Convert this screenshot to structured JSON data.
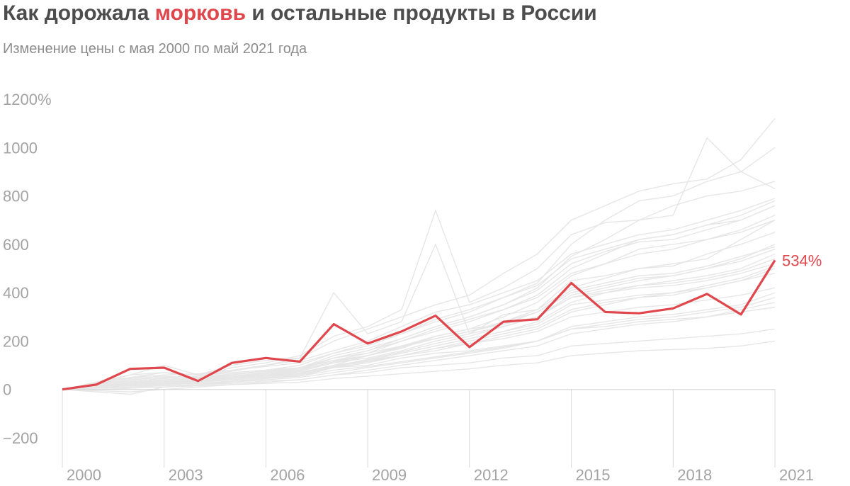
{
  "header": {
    "title_prefix": "Как дорожала ",
    "title_highlight": "морковь",
    "title_suffix": " и остальные продукты в России",
    "subtitle": "Изменение цены с мая 2000 по май 2021 года"
  },
  "colors": {
    "highlight": "#e0474c",
    "background_series": "#e6e6e6",
    "axis": "#d9d9d9",
    "tick_text": "#a3a3a3"
  },
  "chart_data": {
    "type": "line",
    "title": "Как дорожала морковь и остальные продукты в России",
    "subtitle": "Изменение цены с мая 2000 по май 2021 года",
    "xlabel": "",
    "ylabel": "",
    "xlim": [
      2000,
      2021
    ],
    "ylim": [
      -200,
      1200
    ],
    "y_ticks": [
      -200,
      0,
      200,
      400,
      600,
      800,
      1000,
      1200
    ],
    "y_tick_labels": [
      "−200",
      "0",
      "200",
      "400",
      "600",
      "800",
      "1000",
      "1200%"
    ],
    "x_ticks": [
      2000,
      2003,
      2006,
      2009,
      2012,
      2015,
      2018,
      2021
    ],
    "x_tick_labels": [
      "2000",
      "2003",
      "2006",
      "2009",
      "2012",
      "2015",
      "2018",
      "2021"
    ],
    "grid": false,
    "highlight_series": {
      "name": "морковь",
      "end_label": "534%",
      "x": [
        2000,
        2001,
        2002,
        2003,
        2004,
        2005,
        2006,
        2007,
        2008,
        2009,
        2010,
        2011,
        2012,
        2013,
        2014,
        2015,
        2016,
        2017,
        2018,
        2019,
        2020,
        2021
      ],
      "values": [
        0,
        20,
        85,
        90,
        35,
        110,
        130,
        115,
        270,
        190,
        240,
        305,
        175,
        280,
        290,
        440,
        320,
        315,
        335,
        395,
        310,
        534
      ]
    },
    "background_series": [
      {
        "values": [
          0,
          15,
          30,
          40,
          45,
          60,
          80,
          100,
          150,
          190,
          230,
          280,
          320,
          380,
          440,
          600,
          700,
          780,
          800,
          860,
          900,
          1000
        ]
      },
      {
        "values": [
          0,
          20,
          40,
          50,
          55,
          75,
          100,
          130,
          200,
          250,
          300,
          350,
          390,
          480,
          560,
          700,
          760,
          820,
          850,
          870,
          950,
          1120
        ]
      },
      {
        "values": [
          0,
          10,
          25,
          30,
          35,
          50,
          70,
          90,
          140,
          170,
          210,
          260,
          300,
          350,
          420,
          550,
          620,
          700,
          720,
          1040,
          900,
          830
        ]
      },
      {
        "values": [
          0,
          25,
          60,
          70,
          50,
          90,
          110,
          140,
          220,
          260,
          330,
          740,
          360,
          420,
          500,
          640,
          690,
          700,
          760,
          800,
          820,
          860
        ]
      },
      {
        "values": [
          0,
          5,
          20,
          25,
          30,
          45,
          55,
          70,
          100,
          140,
          170,
          220,
          250,
          300,
          360,
          470,
          520,
          580,
          600,
          620,
          650,
          700
        ]
      },
      {
        "values": [
          0,
          10,
          20,
          30,
          40,
          55,
          65,
          80,
          130,
          160,
          200,
          240,
          280,
          330,
          390,
          500,
          560,
          620,
          640,
          680,
          700,
          760
        ]
      },
      {
        "values": [
          0,
          30,
          60,
          100,
          60,
          100,
          120,
          130,
          400,
          230,
          280,
          600,
          230,
          310,
          330,
          450,
          470,
          500,
          520,
          540,
          620,
          700
        ]
      },
      {
        "values": [
          0,
          15,
          25,
          35,
          40,
          50,
          65,
          75,
          110,
          140,
          180,
          210,
          240,
          280,
          330,
          420,
          460,
          500,
          510,
          560,
          600,
          650
        ]
      },
      {
        "values": [
          0,
          5,
          15,
          20,
          25,
          35,
          45,
          60,
          90,
          120,
          150,
          180,
          210,
          240,
          280,
          360,
          400,
          430,
          450,
          470,
          500,
          560
        ]
      },
      {
        "values": [
          0,
          10,
          15,
          25,
          30,
          40,
          50,
          65,
          95,
          125,
          155,
          190,
          220,
          260,
          300,
          390,
          420,
          450,
          470,
          500,
          540,
          600
        ]
      },
      {
        "values": [
          0,
          -10,
          -20,
          10,
          20,
          30,
          45,
          55,
          90,
          110,
          140,
          160,
          190,
          220,
          250,
          320,
          350,
          380,
          390,
          420,
          450,
          480
        ]
      },
      {
        "values": [
          0,
          20,
          40,
          50,
          55,
          70,
          80,
          90,
          130,
          150,
          180,
          220,
          250,
          270,
          300,
          380,
          400,
          420,
          430,
          450,
          480,
          520
        ]
      },
      {
        "values": [
          0,
          15,
          30,
          35,
          40,
          50,
          60,
          70,
          100,
          120,
          140,
          170,
          190,
          210,
          240,
          300,
          320,
          340,
          350,
          370,
          390,
          420
        ]
      },
      {
        "values": [
          0,
          5,
          10,
          15,
          20,
          25,
          35,
          40,
          60,
          80,
          100,
          120,
          140,
          160,
          180,
          230,
          250,
          270,
          280,
          300,
          330,
          360
        ]
      },
      {
        "values": [
          0,
          10,
          20,
          25,
          30,
          40,
          50,
          55,
          80,
          95,
          115,
          135,
          155,
          175,
          200,
          250,
          270,
          290,
          300,
          320,
          340,
          380
        ]
      },
      {
        "values": [
          0,
          20,
          50,
          70,
          60,
          80,
          100,
          120,
          160,
          200,
          260,
          320,
          350,
          400,
          450,
          560,
          600,
          640,
          660,
          700,
          740,
          790
        ]
      },
      {
        "values": [
          0,
          5,
          15,
          20,
          30,
          40,
          50,
          60,
          90,
          100,
          130,
          150,
          160,
          180,
          200,
          260,
          280,
          300,
          310,
          330,
          350,
          400
        ]
      },
      {
        "values": [
          0,
          25,
          45,
          55,
          50,
          65,
          75,
          90,
          120,
          150,
          200,
          250,
          290,
          330,
          380,
          480,
          520,
          560,
          580,
          620,
          660,
          720
        ]
      },
      {
        "values": [
          0,
          -5,
          -10,
          0,
          10,
          20,
          30,
          40,
          60,
          70,
          90,
          100,
          110,
          130,
          140,
          180,
          190,
          200,
          210,
          220,
          230,
          250
        ]
      },
      {
        "values": [
          0,
          10,
          30,
          40,
          45,
          55,
          70,
          85,
          120,
          140,
          180,
          210,
          240,
          270,
          320,
          410,
          440,
          470,
          480,
          510,
          550,
          590
        ]
      },
      {
        "values": [
          0,
          15,
          20,
          30,
          35,
          45,
          60,
          75,
          110,
          130,
          160,
          200,
          230,
          260,
          300,
          380,
          410,
          430,
          440,
          460,
          490,
          540
        ]
      },
      {
        "values": [
          0,
          5,
          10,
          20,
          25,
          30,
          40,
          50,
          70,
          90,
          110,
          130,
          150,
          170,
          200,
          250,
          260,
          280,
          290,
          300,
          320,
          340
        ]
      },
      {
        "values": [
          0,
          20,
          35,
          45,
          50,
          60,
          75,
          90,
          130,
          160,
          210,
          260,
          300,
          350,
          410,
          520,
          570,
          610,
          620,
          660,
          700,
          760
        ]
      },
      {
        "values": [
          0,
          10,
          25,
          30,
          35,
          45,
          55,
          65,
          95,
          115,
          140,
          170,
          200,
          230,
          260,
          330,
          360,
          380,
          400,
          420,
          450,
          500
        ]
      },
      {
        "values": [
          0,
          0,
          5,
          10,
          15,
          20,
          25,
          30,
          45,
          55,
          65,
          75,
          85,
          100,
          110,
          140,
          150,
          160,
          165,
          170,
          180,
          200
        ]
      },
      {
        "values": [
          0,
          30,
          50,
          60,
          65,
          80,
          95,
          110,
          150,
          180,
          230,
          290,
          330,
          380,
          430,
          540,
          580,
          620,
          640,
          680,
          720,
          780
        ]
      },
      {
        "values": [
          0,
          15,
          30,
          40,
          45,
          55,
          70,
          80,
          115,
          140,
          175,
          210,
          240,
          280,
          320,
          400,
          430,
          460,
          470,
          500,
          530,
          580
        ]
      },
      {
        "values": [
          0,
          5,
          20,
          25,
          35,
          45,
          55,
          65,
          100,
          120,
          150,
          180,
          210,
          240,
          270,
          350,
          370,
          390,
          400,
          430,
          460,
          510
        ]
      }
    ]
  }
}
